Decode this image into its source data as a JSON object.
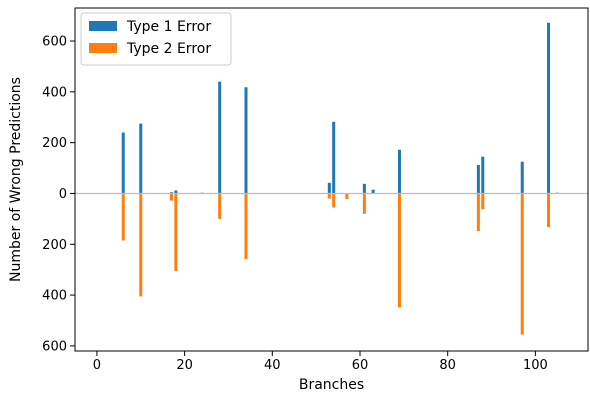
{
  "chart_data": {
    "type": "bar",
    "title": "",
    "xlabel": "Branches",
    "ylabel": "Number of Wrong Predictions",
    "xlim": [
      -5,
      112
    ],
    "ylim": [
      -620,
      730
    ],
    "x_ticks": [
      0,
      20,
      40,
      60,
      80,
      100
    ],
    "y_ticks": [
      600,
      400,
      200,
      0,
      -200,
      -400,
      -600
    ],
    "y_tick_labels": [
      "600",
      "400",
      "200",
      "0",
      "200",
      "400",
      "600"
    ],
    "legend_position": "top-left",
    "grid": false,
    "zero_line": true,
    "series": [
      {
        "name": "Type 1 Error",
        "color": "#1f77b4",
        "direction": "up",
        "points": [
          {
            "x": 6,
            "y": 240
          },
          {
            "x": 10,
            "y": 275
          },
          {
            "x": 17,
            "y": 5
          },
          {
            "x": 18,
            "y": 12
          },
          {
            "x": 24,
            "y": 3
          },
          {
            "x": 28,
            "y": 440
          },
          {
            "x": 34,
            "y": 418
          },
          {
            "x": 53,
            "y": 42
          },
          {
            "x": 54,
            "y": 282
          },
          {
            "x": 61,
            "y": 38
          },
          {
            "x": 63,
            "y": 15
          },
          {
            "x": 69,
            "y": 172
          },
          {
            "x": 87,
            "y": 112
          },
          {
            "x": 88,
            "y": 145
          },
          {
            "x": 97,
            "y": 125
          },
          {
            "x": 103,
            "y": 672
          },
          {
            "x": 105,
            "y": 3
          }
        ]
      },
      {
        "name": "Type 2 Error",
        "color": "#ff7f0e",
        "direction": "down",
        "points": [
          {
            "x": 6,
            "y": 185
          },
          {
            "x": 10,
            "y": 405
          },
          {
            "x": 17,
            "y": 28
          },
          {
            "x": 18,
            "y": 305
          },
          {
            "x": 28,
            "y": 100
          },
          {
            "x": 34,
            "y": 258
          },
          {
            "x": 53,
            "y": 20
          },
          {
            "x": 54,
            "y": 55
          },
          {
            "x": 57,
            "y": 22
          },
          {
            "x": 61,
            "y": 80
          },
          {
            "x": 69,
            "y": 448
          },
          {
            "x": 87,
            "y": 148
          },
          {
            "x": 88,
            "y": 62
          },
          {
            "x": 97,
            "y": 555
          },
          {
            "x": 103,
            "y": 132
          }
        ]
      }
    ]
  }
}
